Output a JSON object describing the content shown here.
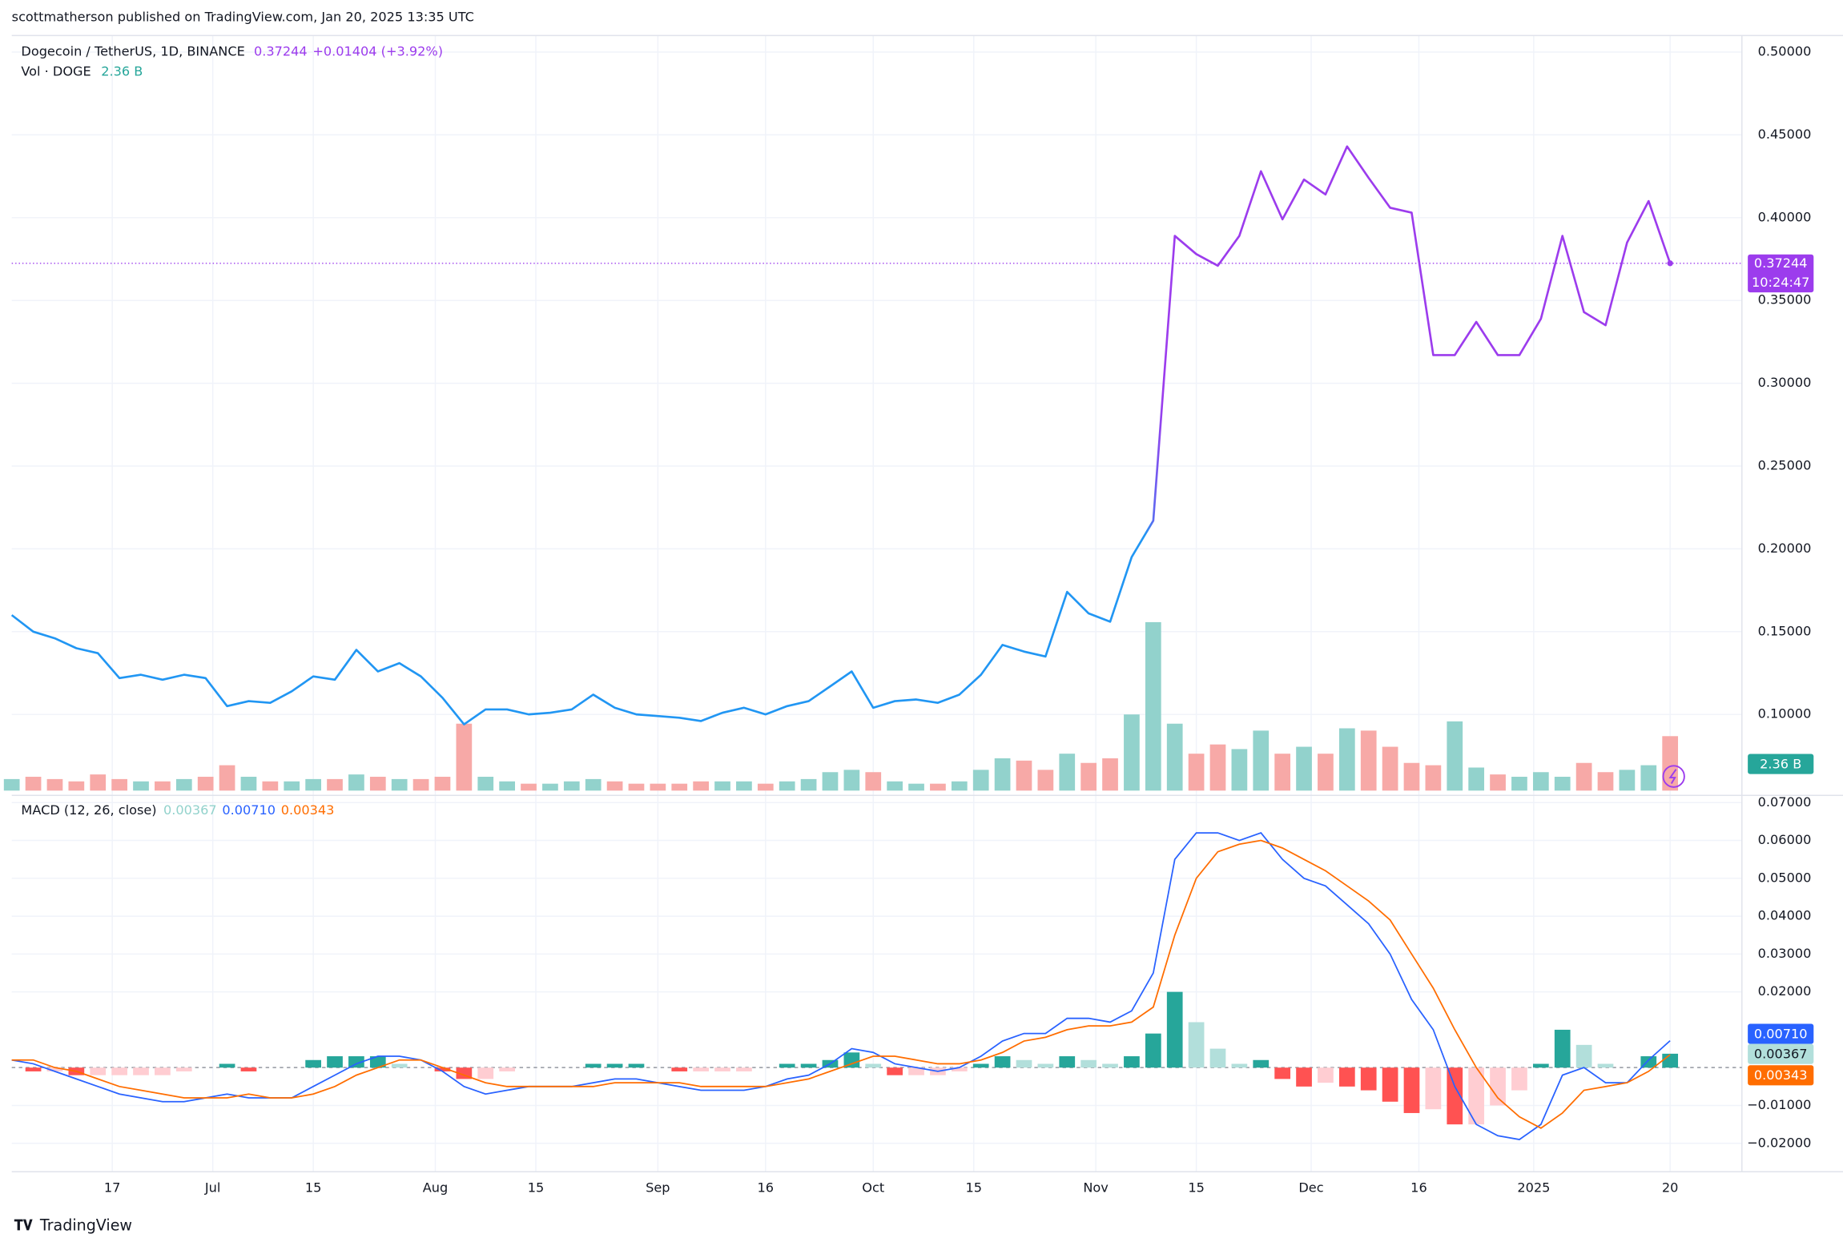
{
  "header": "scottmatherson published on TradingView.com, Jan 20, 2025 13:35 UTC",
  "footer": "TradingView",
  "chart_data": [
    {
      "type": "line",
      "title": "Dogecoin / TetherUS, 1D, BINANCE",
      "change": "+0.01404 (+3.92%)",
      "countdown": "10:24:47",
      "x": [
        "2024-06-03",
        "2024-06-06",
        "2024-06-09",
        "2024-06-12",
        "2024-06-15",
        "2024-06-18",
        "2024-06-21",
        "2024-06-24",
        "2024-06-27",
        "2024-06-30",
        "2024-07-03",
        "2024-07-06",
        "2024-07-09",
        "2024-07-12",
        "2024-07-15",
        "2024-07-18",
        "2024-07-21",
        "2024-07-24",
        "2024-07-27",
        "2024-07-30",
        "2024-08-02",
        "2024-08-05",
        "2024-08-08",
        "2024-08-11",
        "2024-08-14",
        "2024-08-17",
        "2024-08-20",
        "2024-08-23",
        "2024-08-26",
        "2024-08-29",
        "2024-09-01",
        "2024-09-04",
        "2024-09-07",
        "2024-09-10",
        "2024-09-13",
        "2024-09-16",
        "2024-09-19",
        "2024-09-22",
        "2024-09-25",
        "2024-09-28",
        "2024-10-01",
        "2024-10-04",
        "2024-10-07",
        "2024-10-10",
        "2024-10-13",
        "2024-10-16",
        "2024-10-19",
        "2024-10-22",
        "2024-10-25",
        "2024-10-28",
        "2024-10-31",
        "2024-11-03",
        "2024-11-06",
        "2024-11-09",
        "2024-11-12",
        "2024-11-15",
        "2024-11-18",
        "2024-11-21",
        "2024-11-24",
        "2024-11-27",
        "2024-11-30",
        "2024-12-03",
        "2024-12-06",
        "2024-12-09",
        "2024-12-12",
        "2024-12-15",
        "2024-12-18",
        "2024-12-21",
        "2024-12-24",
        "2024-12-27",
        "2024-12-30",
        "2025-01-02",
        "2025-01-05",
        "2025-01-08",
        "2025-01-11",
        "2025-01-14",
        "2025-01-17",
        "2025-01-20"
      ],
      "series": [
        {
          "name": "Dogecoin / TetherUS, 1D, BINANCE",
          "colors": [
            "#2196f3",
            "#9c3ced"
          ],
          "values": [
            0.16,
            0.15,
            0.146,
            0.14,
            0.137,
            0.122,
            0.124,
            0.121,
            0.124,
            0.122,
            0.105,
            0.108,
            0.107,
            0.114,
            0.123,
            0.121,
            0.139,
            0.126,
            0.131,
            0.123,
            0.11,
            0.094,
            0.103,
            0.103,
            0.1,
            0.101,
            0.103,
            0.112,
            0.104,
            0.1,
            0.099,
            0.098,
            0.096,
            0.101,
            0.104,
            0.1,
            0.105,
            0.108,
            0.117,
            0.126,
            0.104,
            0.108,
            0.109,
            0.107,
            0.112,
            0.124,
            0.142,
            0.138,
            0.135,
            0.174,
            0.161,
            0.156,
            0.195,
            0.217,
            0.389,
            0.378,
            0.371,
            0.389,
            0.428,
            0.399,
            0.423,
            0.414,
            0.443,
            0.424,
            0.406,
            0.403,
            0.317,
            0.317,
            0.337,
            0.317,
            0.317,
            0.339,
            0.389,
            0.343,
            0.335,
            0.385,
            0.41,
            0.37244
          ]
        }
      ],
      "xlim": [
        "2024-06-03",
        "2025-01-30"
      ],
      "xticks": [
        {
          "value": "2024-06-17",
          "label": "17"
        },
        {
          "value": "2024-07-01",
          "label": "Jul"
        },
        {
          "value": "2024-07-15",
          "label": "15"
        },
        {
          "value": "2024-08-01",
          "label": "Aug"
        },
        {
          "value": "2024-08-15",
          "label": "15"
        },
        {
          "value": "2024-09-01",
          "label": "Sep"
        },
        {
          "value": "2024-09-16",
          "label": "16"
        },
        {
          "value": "2024-10-01",
          "label": "Oct"
        },
        {
          "value": "2024-10-15",
          "label": "15"
        },
        {
          "value": "2024-11-01",
          "label": "Nov"
        },
        {
          "value": "2024-11-15",
          "label": "15"
        },
        {
          "value": "2024-12-01",
          "label": "Dec"
        },
        {
          "value": "2024-12-16",
          "label": "16"
        },
        {
          "value": "2025-01-01",
          "label": "2025"
        },
        {
          "value": "2025-01-20",
          "label": "20"
        }
      ],
      "ylim": [
        0.054,
        0.51
      ],
      "yticks": [
        {
          "value": 0.1,
          "label": "0.10000"
        },
        {
          "value": 0.15,
          "label": "0.15000"
        },
        {
          "value": 0.2,
          "label": "0.20000"
        },
        {
          "value": 0.25,
          "label": "0.25000"
        },
        {
          "value": 0.3,
          "label": "0.30000"
        },
        {
          "value": 0.35,
          "label": "0.35000"
        },
        {
          "value": 0.4,
          "label": "0.40000"
        },
        {
          "value": 0.45,
          "label": "0.45000"
        },
        {
          "value": 0.5,
          "label": "0.50000"
        }
      ],
      "grid": true
    },
    {
      "type": "bar",
      "title": "Vol · DOGE",
      "last_label": "2.36 B",
      "colors": [
        "#92d2cc",
        "#f7a9a7"
      ],
      "values": [
        0.5,
        0.6,
        0.5,
        0.4,
        0.7,
        0.5,
        0.4,
        0.4,
        0.5,
        0.6,
        1.1,
        0.6,
        0.4,
        0.4,
        0.5,
        0.5,
        0.7,
        0.6,
        0.5,
        0.5,
        0.6,
        2.9,
        0.6,
        0.4,
        0.3,
        0.3,
        0.4,
        0.5,
        0.4,
        0.3,
        0.3,
        0.3,
        0.4,
        0.4,
        0.4,
        0.3,
        0.4,
        0.5,
        0.8,
        0.9,
        0.8,
        0.4,
        0.3,
        0.3,
        0.4,
        0.9,
        1.4,
        1.3,
        0.9,
        1.6,
        1.2,
        1.4,
        3.3,
        7.3,
        2.9,
        1.6,
        2.0,
        1.8,
        2.6,
        1.6,
        1.9,
        1.6,
        2.7,
        2.6,
        1.9,
        1.2,
        1.1,
        3.0,
        1.0,
        0.7,
        0.6,
        0.8,
        0.6,
        1.2,
        0.8,
        0.9,
        1.1,
        2.36
      ]
    },
    {
      "type": "macd",
      "title": "MACD (12, 26, close)",
      "series": [
        {
          "name": "Histogram",
          "last_label": "0.00367",
          "colors": [
            "#26a69a",
            "#b2dfdb",
            "#ffcdd2",
            "#ff5252"
          ],
          "values": [
            0.0,
            -0.001,
            -0.001,
            -0.002,
            -0.002,
            -0.002,
            -0.002,
            -0.002,
            -0.001,
            0.0,
            0.001,
            -0.001,
            0.0,
            0.0,
            0.002,
            0.003,
            0.003,
            0.003,
            0.001,
            0.0,
            -0.001,
            -0.003,
            -0.003,
            -0.001,
            0.0,
            0.0,
            0.0,
            0.001,
            0.001,
            0.001,
            0.0,
            -0.001,
            -0.001,
            -0.001,
            -0.001,
            0.0,
            0.001,
            0.001,
            0.002,
            0.004,
            0.001,
            -0.002,
            -0.002,
            -0.002,
            -0.001,
            0.001,
            0.003,
            0.002,
            0.001,
            0.003,
            0.002,
            0.001,
            0.003,
            0.009,
            0.02,
            0.012,
            0.005,
            0.001,
            0.002,
            -0.003,
            -0.005,
            -0.004,
            -0.005,
            -0.006,
            -0.009,
            -0.012,
            -0.011,
            -0.015,
            -0.015,
            -0.01,
            -0.006,
            0.001,
            0.01,
            0.006,
            0.001,
            0.0,
            0.003,
            0.00367
          ]
        },
        {
          "name": "MACD",
          "last_label": "0.00710",
          "color": "#2962ff",
          "values": [
            0.002,
            0.001,
            -0.001,
            -0.003,
            -0.005,
            -0.007,
            -0.008,
            -0.009,
            -0.009,
            -0.008,
            -0.007,
            -0.008,
            -0.008,
            -0.008,
            -0.005,
            -0.002,
            0.001,
            0.003,
            0.003,
            0.002,
            -0.001,
            -0.005,
            -0.007,
            -0.006,
            -0.005,
            -0.005,
            -0.005,
            -0.004,
            -0.003,
            -0.003,
            -0.004,
            -0.005,
            -0.006,
            -0.006,
            -0.006,
            -0.005,
            -0.003,
            -0.002,
            0.001,
            0.005,
            0.004,
            0.001,
            0.0,
            -0.001,
            0.0,
            0.003,
            0.007,
            0.009,
            0.009,
            0.013,
            0.013,
            0.012,
            0.015,
            0.025,
            0.055,
            0.062,
            0.062,
            0.06,
            0.062,
            0.055,
            0.05,
            0.048,
            0.043,
            0.038,
            0.03,
            0.018,
            0.01,
            -0.005,
            -0.015,
            -0.018,
            -0.019,
            -0.015,
            -0.002,
            0.0,
            -0.004,
            -0.004,
            0.002,
            0.0071
          ]
        },
        {
          "name": "Signal",
          "last_label": "0.00343",
          "color": "#ff6d00",
          "values": [
            0.002,
            0.002,
            0.0,
            -0.001,
            -0.003,
            -0.005,
            -0.006,
            -0.007,
            -0.008,
            -0.008,
            -0.008,
            -0.007,
            -0.008,
            -0.008,
            -0.007,
            -0.005,
            -0.002,
            0.0,
            0.002,
            0.002,
            0.0,
            -0.002,
            -0.004,
            -0.005,
            -0.005,
            -0.005,
            -0.005,
            -0.005,
            -0.004,
            -0.004,
            -0.004,
            -0.004,
            -0.005,
            -0.005,
            -0.005,
            -0.005,
            -0.004,
            -0.003,
            -0.001,
            0.001,
            0.003,
            0.003,
            0.002,
            0.001,
            0.001,
            0.002,
            0.004,
            0.007,
            0.008,
            0.01,
            0.011,
            0.011,
            0.012,
            0.016,
            0.035,
            0.05,
            0.057,
            0.059,
            0.06,
            0.058,
            0.055,
            0.052,
            0.048,
            0.044,
            0.039,
            0.03,
            0.021,
            0.01,
            0.0,
            -0.008,
            -0.013,
            -0.016,
            -0.012,
            -0.006,
            -0.005,
            -0.004,
            -0.001,
            0.00343
          ]
        }
      ],
      "ylim": [
        -0.0275,
        0.0716
      ],
      "yticks": [
        {
          "value": -0.02,
          "label": "−0.02000"
        },
        {
          "value": -0.01,
          "label": "−0.01000"
        },
        {
          "value": 0.02,
          "label": "0.02000"
        },
        {
          "value": 0.03,
          "label": "0.03000"
        },
        {
          "value": 0.04,
          "label": "0.04000"
        },
        {
          "value": 0.05,
          "label": "0.05000"
        },
        {
          "value": 0.06,
          "label": "0.06000"
        },
        {
          "value": 0.07,
          "label": "0.07000"
        }
      ]
    }
  ]
}
